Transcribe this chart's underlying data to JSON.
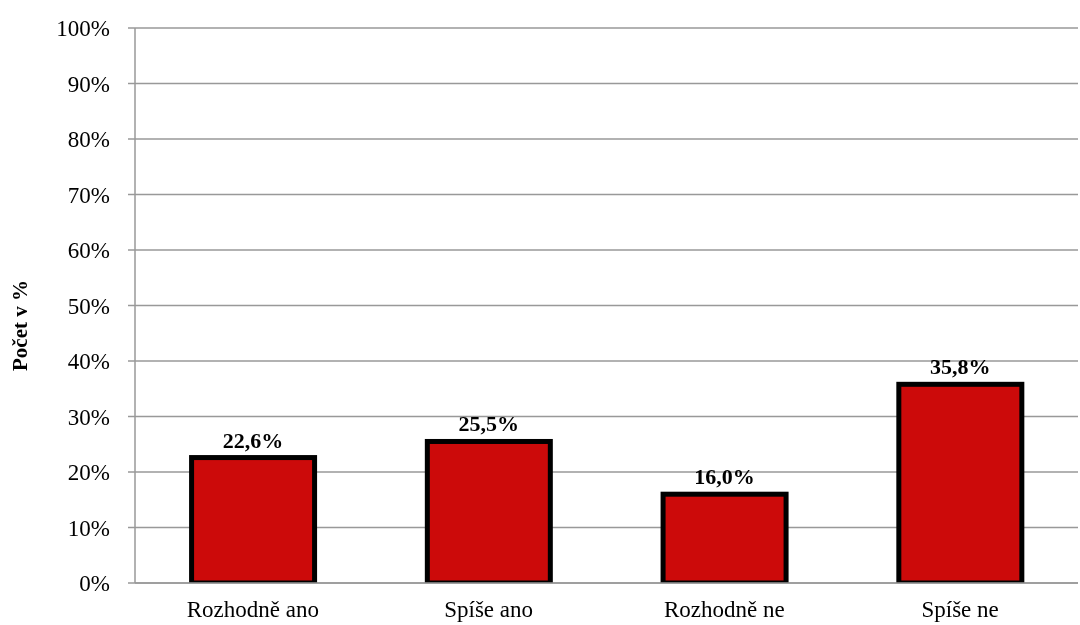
{
  "chart_data": {
    "type": "bar",
    "ylabel": "Počet v %",
    "categories": [
      "Rozhodně ano",
      "Spíše ano",
      "Rozhodně ne",
      "Spíše ne"
    ],
    "values": [
      22.6,
      25.5,
      16.0,
      35.8
    ],
    "value_labels": [
      "22,6%",
      "25,5%",
      "16,0%",
      "35,8%"
    ],
    "color": "#cc0a0a",
    "ylim": [
      0,
      100
    ],
    "yticks": [
      {
        "value": 0,
        "label": "0%"
      },
      {
        "value": 10,
        "label": "10%"
      },
      {
        "value": 20,
        "label": "20%"
      },
      {
        "value": 30,
        "label": "30%"
      },
      {
        "value": 40,
        "label": "40%"
      },
      {
        "value": 50,
        "label": "50%"
      },
      {
        "value": 60,
        "label": "60%"
      },
      {
        "value": 70,
        "label": "70%"
      },
      {
        "value": 80,
        "label": "80%"
      },
      {
        "value": 90,
        "label": "90%"
      },
      {
        "value": 100,
        "label": "100%"
      }
    ],
    "grid": "y"
  }
}
